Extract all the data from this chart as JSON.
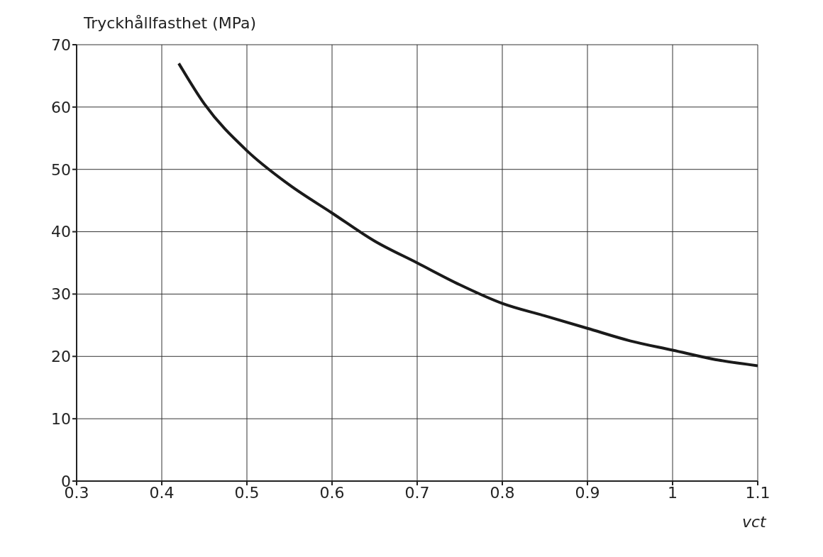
{
  "chart_data": {
    "type": "line",
    "ylabel": "Tryckhållfasthet (MPa)",
    "xlabel": "vct",
    "x": [
      0.42,
      0.45,
      0.5,
      0.55,
      0.6,
      0.65,
      0.7,
      0.75,
      0.8,
      0.85,
      0.9,
      0.95,
      1.0,
      1.05,
      1.1
    ],
    "series": [
      {
        "color": "#1a1a1a",
        "values": [
          67,
          60.5,
          53,
          47.5,
          43,
          38.5,
          35,
          31.5,
          28.5,
          26.5,
          24.5,
          22.5,
          21,
          19.5,
          18.5
        ]
      }
    ],
    "xlim": [
      0.3,
      1.1
    ],
    "xticks": [
      0.3,
      0.4,
      0.5,
      0.6,
      0.7,
      0.8,
      0.9,
      1,
      1.1
    ],
    "ylim": [
      0,
      70
    ],
    "yticks": [
      0,
      10,
      20,
      30,
      40,
      50,
      60,
      70
    ],
    "grid": true,
    "marker": "none",
    "line_style": "solid",
    "legend": false
  }
}
